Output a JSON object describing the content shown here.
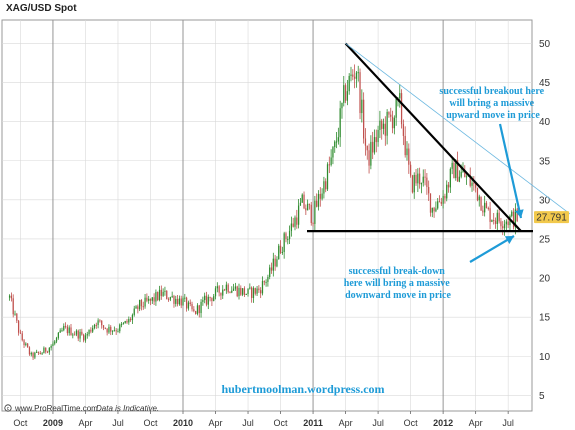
{
  "chart_data": {
    "type": "line",
    "title": "XAG/USD Spot",
    "ylim": [
      3,
      53
    ],
    "yticks": [
      5,
      10,
      15,
      20,
      25,
      30,
      35,
      40,
      45,
      50
    ],
    "xticks": [
      "Oct",
      "2009",
      "Apr",
      "Jul",
      "Oct",
      "2010",
      "Apr",
      "Jul",
      "Oct",
      "2011",
      "Apr",
      "Jul",
      "Oct",
      "2012",
      "Apr",
      "Jul"
    ],
    "year_ticks": [
      "2009",
      "2010",
      "2011",
      "2012"
    ],
    "grid": true,
    "series": [
      {
        "style": "candlestick",
        "x": [
          "2008-09",
          "2008-10",
          "2008-11",
          "2008-12",
          "2009-01",
          "2009-02",
          "2009-03",
          "2009-04",
          "2009-05",
          "2009-06",
          "2009-07",
          "2009-08",
          "2009-09",
          "2009-10",
          "2009-11",
          "2009-12",
          "2010-01",
          "2010-02",
          "2010-03",
          "2010-04",
          "2010-05",
          "2010-06",
          "2010-07",
          "2010-08",
          "2010-09",
          "2010-10",
          "2010-11",
          "2010-12",
          "2011-01",
          "2011-02",
          "2011-03",
          "2011-04",
          "2011-05",
          "2011-06",
          "2011-07",
          "2011-08",
          "2011-09",
          "2011-10",
          "2011-11",
          "2011-12",
          "2012-01",
          "2012-02",
          "2012-03",
          "2012-04",
          "2012-05",
          "2012-06",
          "2012-07",
          "2012-08"
        ],
        "values": [
          17.5,
          12.5,
          10.0,
          10.5,
          11.5,
          13.5,
          13.0,
          12.5,
          14.5,
          13.5,
          13.5,
          14.5,
          16.5,
          17.0,
          18.0,
          17.5,
          17.0,
          15.5,
          17.0,
          18.0,
          19.0,
          18.5,
          18.0,
          18.5,
          20.5,
          24.0,
          26.5,
          29.5,
          28.0,
          32.0,
          36.5,
          44.0,
          47.0,
          35.0,
          38.5,
          40.0,
          42.0,
          32.0,
          33.0,
          29.0,
          30.5,
          34.0,
          33.0,
          31.5,
          28.5,
          27.5,
          27.5,
          27.79
        ]
      }
    ],
    "last_price": "27.791",
    "annotations": {
      "breakout_lines": [
        "successful breakout here",
        "will bring a massive",
        "upward move in price"
      ],
      "breakdown_lines": [
        "successful break-down",
        "here will bring a massive",
        "downward move in price"
      ],
      "support_level": 26,
      "resistance_from": {
        "date": "2011-04",
        "value": 50
      },
      "resistance_to": {
        "date": "2012-08",
        "value": 26
      }
    },
    "source": "www.ProRealTime.com",
    "disclaimer": "Data is Indicative.",
    "watermark": "hubertmoolman.wordpress.com",
    "colors": {
      "up": "#2e8b2e",
      "down": "#c0504d",
      "annotation": "#1e9bd7",
      "price_box": "#f2c94c",
      "grid": "#d9d9d9"
    }
  }
}
